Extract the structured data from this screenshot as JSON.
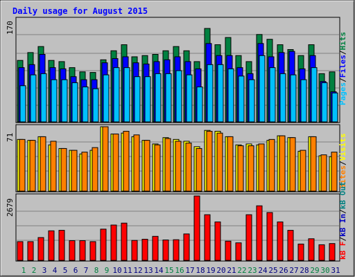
{
  "title": "Daily usage for August 2015",
  "colors": {
    "hits": "#008040",
    "files": "#0000ff",
    "pages": "#00c0ff",
    "visits": "#ffff00",
    "sites": "#ff8000",
    "kb_in": "#0000c0",
    "kb_out": "#008080",
    "kb_f": "#ff0000",
    "weekend": "#008040",
    "weekday": "#000080",
    "panel_bg": "#c0c0c0",
    "frame_bg": "#c0c0c0"
  },
  "labels": {
    "top_max": "170",
    "mid_max": "71",
    "bottom_max": "2679",
    "side_top": [
      "Pages",
      "/",
      "Files",
      "/",
      "Hits"
    ],
    "side_mid": [
      "Sites",
      "/",
      "Visits"
    ],
    "side_bottom": [
      "kB F",
      "/",
      "kB In",
      "/",
      "kB Out"
    ]
  },
  "chart_data": [
    {
      "type": "bar",
      "title": "Daily usage for August 2015",
      "categories": [
        "1",
        "2",
        "3",
        "4",
        "5",
        "6",
        "7",
        "8",
        "9",
        "10",
        "11",
        "12",
        "13",
        "14",
        "15",
        "16",
        "17",
        "18",
        "19",
        "20",
        "21",
        "22",
        "23",
        "24",
        "25",
        "26",
        "27",
        "28",
        "29",
        "30",
        "31"
      ],
      "weekend_days": [
        1,
        2,
        8,
        9,
        15,
        16,
        22,
        23,
        29,
        30
      ],
      "ymax": 170,
      "series": [
        {
          "name": "Hits",
          "values": [
            102,
            115,
            125,
            102,
            100,
            90,
            83,
            82,
            103,
            118,
            128,
            108,
            110,
            112,
            118,
            125,
            118,
            100,
            155,
            128,
            140,
            110,
            100,
            145,
            137,
            128,
            120,
            110,
            128,
            80,
            83
          ]
        },
        {
          "name": "Files",
          "values": [
            90,
            95,
            112,
            90,
            88,
            75,
            70,
            70,
            98,
            105,
            108,
            98,
            96,
            100,
            103,
            108,
            100,
            88,
            130,
            110,
            110,
            90,
            80,
            130,
            108,
            115,
            117,
            88,
            110,
            67,
            50
          ]
        },
        {
          "name": "Pages",
          "values": [
            60,
            78,
            80,
            70,
            70,
            65,
            58,
            55,
            78,
            90,
            90,
            75,
            75,
            80,
            80,
            85,
            78,
            58,
            95,
            95,
            88,
            76,
            70,
            110,
            90,
            80,
            78,
            70,
            90,
            65,
            48
          ]
        }
      ]
    },
    {
      "type": "bar",
      "ymax": 71,
      "series": [
        {
          "name": "Visits",
          "values": [
            57,
            56,
            60,
            51,
            47,
            45,
            41,
            45,
            71,
            63,
            64,
            60,
            56,
            52,
            59,
            57,
            55,
            49,
            67,
            66,
            60,
            51,
            52,
            51,
            56,
            61,
            59,
            44,
            60,
            39,
            38
          ]
        },
        {
          "name": "Sites",
          "values": [
            57,
            56,
            60,
            55,
            47,
            45,
            43,
            48,
            71,
            63,
            66,
            62,
            56,
            51,
            58,
            55,
            53,
            47,
            66,
            64,
            60,
            50,
            50,
            52,
            57,
            61,
            59,
            45,
            60,
            40,
            43
          ]
        }
      ]
    },
    {
      "type": "bar",
      "ymax": 2679,
      "series": [
        {
          "name": "kB F",
          "values": [
            780,
            780,
            950,
            1230,
            1250,
            820,
            820,
            780,
            1300,
            1470,
            1550,
            830,
            880,
            1000,
            850,
            860,
            1100,
            2700,
            1900,
            1600,
            800,
            730,
            1900,
            2270,
            1990,
            1600,
            1250,
            680,
            900,
            650,
            700
          ]
        },
        {
          "name": "kB In",
          "values": [
            0,
            0,
            0,
            0,
            0,
            0,
            0,
            0,
            0,
            0,
            0,
            0,
            0,
            0,
            0,
            0,
            0,
            0,
            0,
            0,
            0,
            0,
            0,
            0,
            0,
            0,
            0,
            0,
            0,
            0,
            0
          ]
        },
        {
          "name": "kB Out",
          "values": [
            0,
            0,
            0,
            0,
            0,
            0,
            0,
            0,
            0,
            0,
            0,
            0,
            0,
            0,
            0,
            0,
            0,
            0,
            0,
            0,
            0,
            0,
            0,
            0,
            0,
            0,
            0,
            0,
            0,
            0,
            0
          ]
        }
      ]
    }
  ]
}
